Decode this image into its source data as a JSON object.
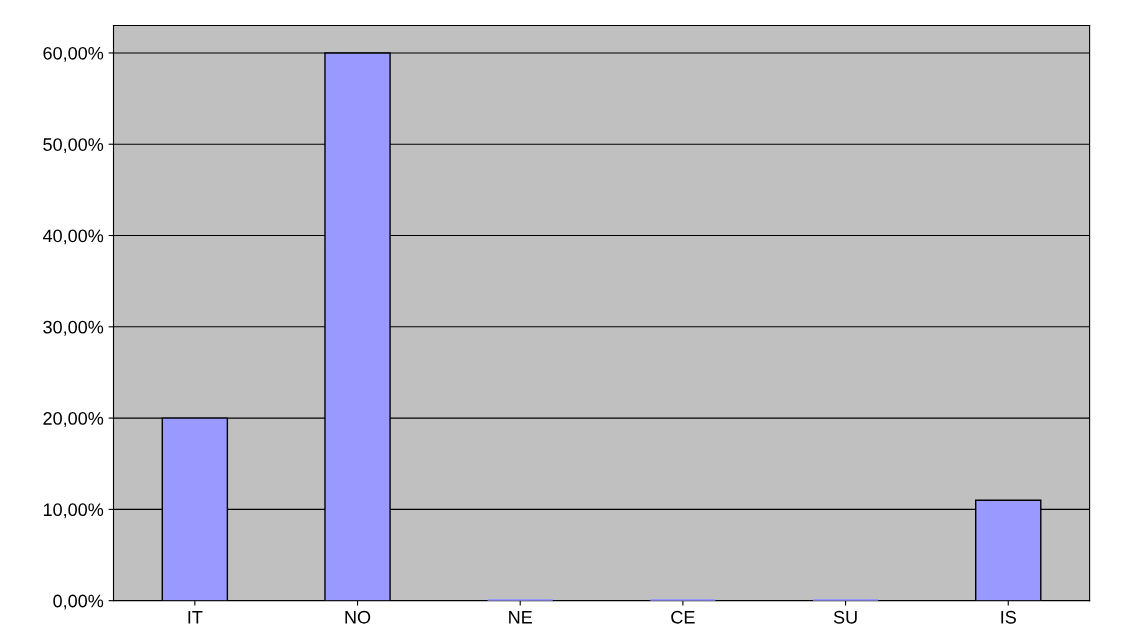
{
  "chart_data": {
    "type": "bar",
    "categories": [
      "IT",
      "NO",
      "NE",
      "CE",
      "SU",
      "IS"
    ],
    "values": [
      20,
      60,
      0,
      0,
      0,
      11
    ],
    "color": "#9999ff",
    "ylim": [
      0,
      63
    ],
    "yticks": [
      {
        "value": 0,
        "label": "0,00%"
      },
      {
        "value": 10,
        "label": "10,00%"
      },
      {
        "value": 20,
        "label": "20,00%"
      },
      {
        "value": 30,
        "label": "30,00%"
      },
      {
        "value": 40,
        "label": "40,00%"
      },
      {
        "value": 50,
        "label": "50,00%"
      },
      {
        "value": 60,
        "label": "60,00%"
      }
    ],
    "grid": "y",
    "legend": false
  }
}
